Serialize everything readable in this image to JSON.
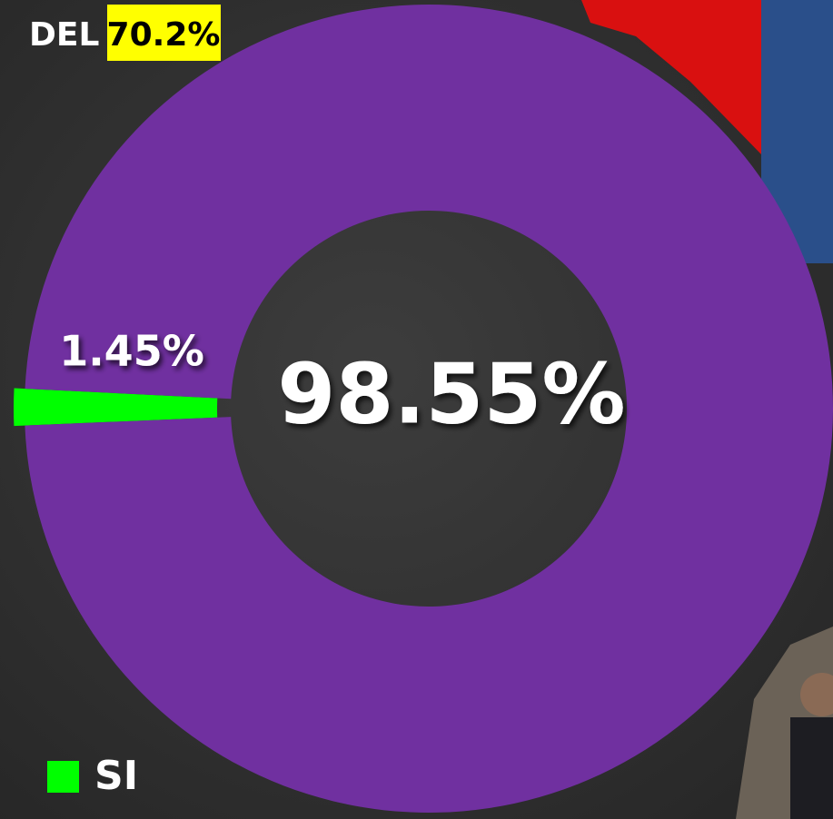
{
  "chart_data": {
    "type": "donut",
    "title": "DEL",
    "title_highlight": "70.2%",
    "categories": [
      "SI",
      null
    ],
    "values": [
      1.45,
      98.55
    ],
    "value_labels": [
      "1.45%",
      "98.55%"
    ],
    "colors": [
      "#00ff00",
      "#7030a0"
    ],
    "legend": "bottom-left"
  }
}
